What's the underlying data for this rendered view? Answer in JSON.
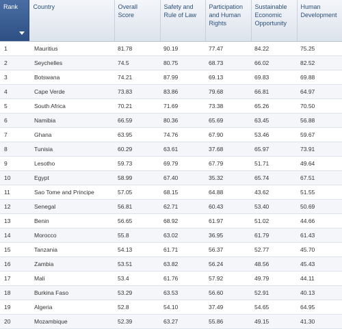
{
  "table": {
    "headers": {
      "rank": "Rank",
      "country": "Country",
      "overall": [
        "Overall",
        "Score"
      ],
      "safety": [
        "Safety and",
        "Rule of Law"
      ],
      "participation": [
        "Participation",
        "and Human",
        "Rights"
      ],
      "economic": [
        "Sustainable",
        "Economic",
        "Opportunity"
      ],
      "human": [
        "Human",
        "Development"
      ]
    },
    "sort": {
      "column": "rank",
      "direction": "descending-arrow-icon"
    },
    "rows": [
      {
        "rank": "1",
        "country": "Mauritius",
        "overall": "81.78",
        "safety": "90.19",
        "participation": "77.47",
        "economic": "84.22",
        "human": "75.25"
      },
      {
        "rank": "2",
        "country": "Seychelles",
        "overall": "74.5",
        "safety": "80.75",
        "participation": "68.73",
        "economic": "66.02",
        "human": "82.52"
      },
      {
        "rank": "3",
        "country": "Botswana",
        "overall": "74.21",
        "safety": "87.99",
        "participation": "69.13",
        "economic": "69.83",
        "human": "69.88"
      },
      {
        "rank": "4",
        "country": "Cape Verde",
        "overall": "73.83",
        "safety": "83.86",
        "participation": "79.68",
        "economic": "66.81",
        "human": "64.97"
      },
      {
        "rank": "5",
        "country": "South Africa",
        "overall": "70.21",
        "safety": "71.69",
        "participation": "73.38",
        "economic": "65.26",
        "human": "70.50"
      },
      {
        "rank": "6",
        "country": "Namibia",
        "overall": "66.59",
        "safety": "80.36",
        "participation": "65.69",
        "economic": "63.45",
        "human": "56.88"
      },
      {
        "rank": "7",
        "country": "Ghana",
        "overall": "63.95",
        "safety": "74.76",
        "participation": "67.90",
        "economic": "53.46",
        "human": "59.67"
      },
      {
        "rank": "8",
        "country": "Tunisia",
        "overall": "60.29",
        "safety": "63.61",
        "participation": "37.68",
        "economic": "65.97",
        "human": "73.91"
      },
      {
        "rank": "9",
        "country": "Lesotho",
        "overall": "59.73",
        "safety": "69.79",
        "participation": "67.79",
        "economic": "51.71",
        "human": "49.64"
      },
      {
        "rank": "10",
        "country": "Egypt",
        "overall": "58.99",
        "safety": "67.40",
        "participation": "35.32",
        "economic": "65.74",
        "human": "67.51"
      },
      {
        "rank": "11",
        "country": "Sao Tome and Principe",
        "overall": "57.05",
        "safety": "68.15",
        "participation": "64.88",
        "economic": "43.62",
        "human": "51.55"
      },
      {
        "rank": "12",
        "country": "Senegal",
        "overall": "56.81",
        "safety": "62.71",
        "participation": "60.43",
        "economic": "53.40",
        "human": "50.69"
      },
      {
        "rank": "13",
        "country": "Benin",
        "overall": "56.65",
        "safety": "68.92",
        "participation": "61.97",
        "economic": "51.02",
        "human": "44.66"
      },
      {
        "rank": "14",
        "country": "Morocco",
        "overall": "55.8",
        "safety": "63.02",
        "participation": "36.95",
        "economic": "61.79",
        "human": "61.43"
      },
      {
        "rank": "15",
        "country": "Tanzania",
        "overall": "54.13",
        "safety": "61.71",
        "participation": "56.37",
        "economic": "52.77",
        "human": "45.70"
      },
      {
        "rank": "16",
        "country": "Zambia",
        "overall": "53.51",
        "safety": "63.82",
        "participation": "56.24",
        "economic": "48.56",
        "human": "45.43"
      },
      {
        "rank": "17",
        "country": "Mali",
        "overall": "53.4",
        "safety": "61.76",
        "participation": "57.92",
        "economic": "49.79",
        "human": "44.11"
      },
      {
        "rank": "18",
        "country": "Burkina Faso",
        "overall": "53.29",
        "safety": "63.53",
        "participation": "56.60",
        "economic": "52.91",
        "human": "40.13"
      },
      {
        "rank": "19",
        "country": "Algeria",
        "overall": "52.8",
        "safety": "54.10",
        "participation": "37.49",
        "economic": "54.65",
        "human": "64.95"
      },
      {
        "rank": "20",
        "country": "Mozambique",
        "overall": "52.39",
        "safety": "63.27",
        "participation": "55.86",
        "economic": "49.15",
        "human": "41.30"
      }
    ]
  }
}
